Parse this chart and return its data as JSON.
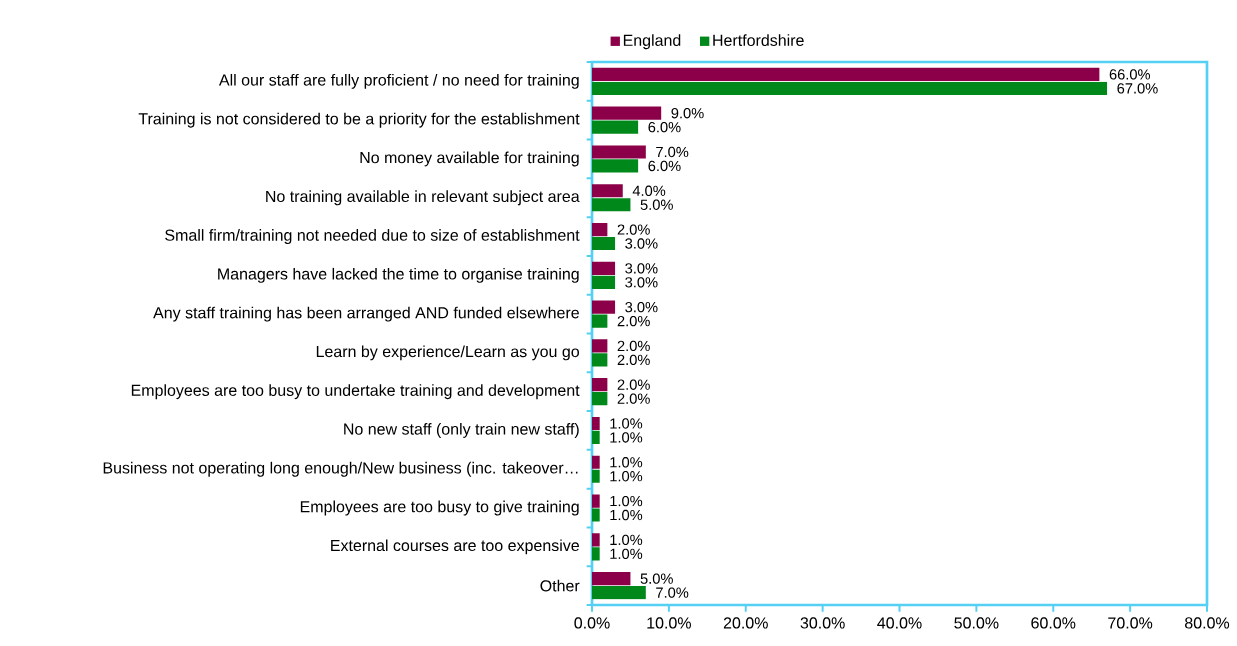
{
  "chart_data": {
    "type": "bar",
    "orientation": "horizontal",
    "legend": "top",
    "grid": false,
    "categories": [
      "All our staff are fully proficient / no need for training",
      "Training is not considered to be a priority for the establishment",
      "No money available for training",
      "No training available in relevant subject area",
      "Small firm/training not needed due to size of establishment",
      "Managers have lacked the time to organise training",
      "Any staff training has been arranged AND funded elsewhere",
      "Learn by experience/Learn as you go",
      "Employees are too busy to undertake training and development",
      "No new staff (only train new staff)",
      "Business not operating long enough/New business (inc. takeover…",
      "Employees are too busy to give training",
      "External courses are too expensive",
      "Other"
    ],
    "series": [
      {
        "name": "England",
        "color": "#8b0048",
        "values": [
          66,
          9,
          7,
          4,
          2,
          3,
          3,
          2,
          2,
          1,
          1,
          1,
          1,
          5
        ],
        "value_labels": [
          "66.0%",
          "9.0%",
          "7.0%",
          "4.0%",
          "2.0%",
          "3.0%",
          "3.0%",
          "2.0%",
          "2.0%",
          "1.0%",
          "1.0%",
          "1.0%",
          "1.0%",
          "5.0%"
        ]
      },
      {
        "name": "Hertfordshire",
        "color": "#00891a",
        "values": [
          67,
          6,
          6,
          5,
          3,
          3,
          2,
          2,
          2,
          1,
          1,
          1,
          1,
          7
        ],
        "value_labels": [
          "67.0%",
          "6.0%",
          "6.0%",
          "5.0%",
          "3.0%",
          "3.0%",
          "2.0%",
          "2.0%",
          "2.0%",
          "1.0%",
          "1.0%",
          "1.0%",
          "1.0%",
          "7.0%"
        ]
      }
    ],
    "xlim": [
      0,
      80
    ],
    "xticks": [
      {
        "value": 0,
        "label": "0.0%"
      },
      {
        "value": 10,
        "label": "10.0%"
      },
      {
        "value": 20,
        "label": "20.0%"
      },
      {
        "value": 30,
        "label": "30.0%"
      },
      {
        "value": 40,
        "label": "40.0%"
      },
      {
        "value": 50,
        "label": "50.0%"
      },
      {
        "value": 60,
        "label": "60.0%"
      },
      {
        "value": 70,
        "label": "70.0%"
      },
      {
        "value": 80,
        "label": "80.0%"
      }
    ]
  }
}
